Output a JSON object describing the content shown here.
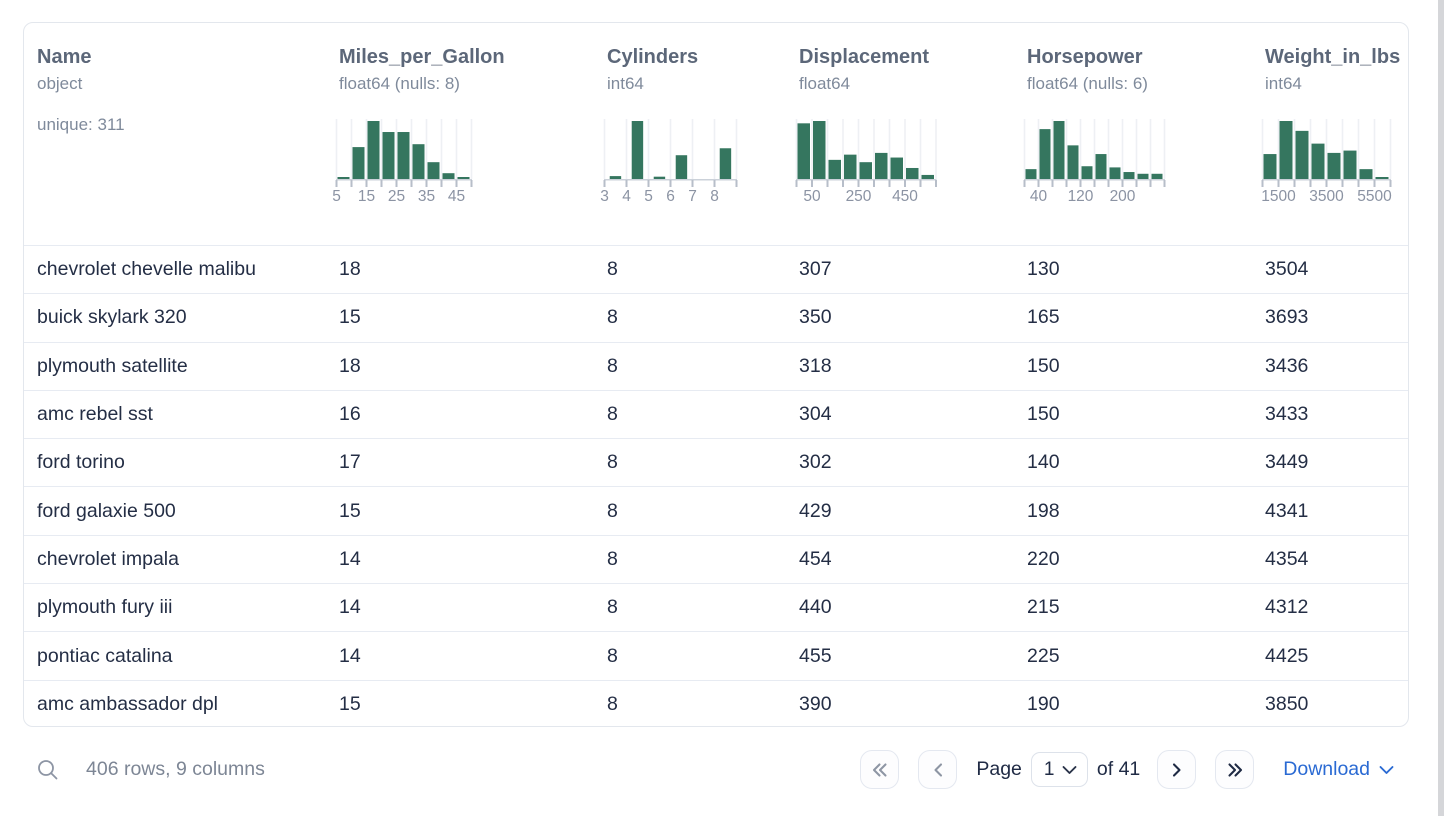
{
  "table": {
    "columns": [
      {
        "key": "name",
        "name": "Name",
        "type": "object",
        "extra": "unique: 311"
      },
      {
        "key": "mpg",
        "name": "Miles_per_Gallon",
        "type": "float64 (nulls: 8)",
        "histogram": {
          "bin_width": 15,
          "bins": [
            0.03,
            0.55,
            1.0,
            0.81,
            0.81,
            0.6,
            0.29,
            0.1,
            0.03
          ],
          "style": "full",
          "labels": [
            [
              0,
              "5"
            ],
            [
              2,
              "15"
            ],
            [
              4,
              "25"
            ],
            [
              6,
              "35"
            ],
            [
              8,
              "45"
            ]
          ]
        }
      },
      {
        "key": "cylinders",
        "name": "Cylinders",
        "type": "int64",
        "histogram": {
          "bin_width": 22,
          "bins": [
            0.05,
            1.0,
            0.04,
            0.41,
            0,
            0.53
          ],
          "style": "narrow",
          "labels": [
            [
              0,
              "3"
            ],
            [
              1,
              "4"
            ],
            [
              2,
              "5"
            ],
            [
              3,
              "6"
            ],
            [
              4,
              "7"
            ],
            [
              5,
              "8"
            ]
          ]
        }
      },
      {
        "key": "displacement",
        "name": "Displacement",
        "type": "float64",
        "histogram": {
          "bin_width": 15.5,
          "bins": [
            0.96,
            1.0,
            0.33,
            0.42,
            0.29,
            0.45,
            0.37,
            0.19,
            0.07
          ],
          "style": "full",
          "labels": [
            [
              1,
              "50"
            ],
            [
              4,
              "250"
            ],
            [
              7,
              "450"
            ]
          ]
        }
      },
      {
        "key": "horsepower",
        "name": "Horsepower",
        "type": "float64 (nulls: 6)",
        "histogram": {
          "bin_width": 14,
          "bins": [
            0.17,
            0.86,
            1.0,
            0.58,
            0.22,
            0.43,
            0.2,
            0.12,
            0.09,
            0.09
          ],
          "style": "full",
          "labels": [
            [
              1,
              "40"
            ],
            [
              4,
              "120"
            ],
            [
              7,
              "200"
            ]
          ]
        }
      },
      {
        "key": "weight",
        "name": "Weight_in_lbs",
        "type": "int64",
        "histogram": {
          "bin_width": 16,
          "bins": [
            0.43,
            1.0,
            0.83,
            0.61,
            0.45,
            0.49,
            0.17,
            0.03
          ],
          "style": "full",
          "labels": [
            [
              1,
              "1500"
            ],
            [
              4,
              "3500"
            ],
            [
              7,
              "5500"
            ]
          ]
        }
      }
    ],
    "rows": [
      [
        "chevrolet chevelle malibu",
        "18",
        "8",
        "307",
        "130",
        "3504"
      ],
      [
        "buick skylark 320",
        "15",
        "8",
        "350",
        "165",
        "3693"
      ],
      [
        "plymouth satellite",
        "18",
        "8",
        "318",
        "150",
        "3436"
      ],
      [
        "amc rebel sst",
        "16",
        "8",
        "304",
        "150",
        "3433"
      ],
      [
        "ford torino",
        "17",
        "8",
        "302",
        "140",
        "3449"
      ],
      [
        "ford galaxie 500",
        "15",
        "8",
        "429",
        "198",
        "4341"
      ],
      [
        "chevrolet impala",
        "14",
        "8",
        "454",
        "220",
        "4354"
      ],
      [
        "plymouth fury iii",
        "14",
        "8",
        "440",
        "215",
        "4312"
      ],
      [
        "pontiac catalina",
        "14",
        "8",
        "455",
        "225",
        "4425"
      ],
      [
        "amc ambassador dpl",
        "15",
        "8",
        "390",
        "190",
        "3850"
      ]
    ]
  },
  "footer": {
    "status": "406 rows, 9 columns",
    "page_label": "Page",
    "page_value": "1",
    "of_label": "of 41",
    "download_label": "Download"
  },
  "icons": {
    "search": "search-icon",
    "first_page": "double-chevron-left-icon",
    "prev_page": "chevron-left-icon",
    "next_page": "chevron-right-icon",
    "last_page": "double-chevron-right-icon",
    "select_caret": "chevron-down-icon",
    "download_caret": "chevron-down-icon"
  },
  "colors": {
    "histogram_green": "#35765f",
    "header_text": "#5c6779",
    "type_text": "#7f8a9b",
    "row_text": "#242e45",
    "muted_text": "#7d8695",
    "dark_icon": "#1f2a44",
    "disabled_icon": "#8e96a4",
    "link_blue": "#2a6ad3",
    "grid_line": "#eef0f4",
    "tick_line": "#b7bec9",
    "baseline": "#cbd1d9",
    "separator": "#e7ebf2"
  }
}
